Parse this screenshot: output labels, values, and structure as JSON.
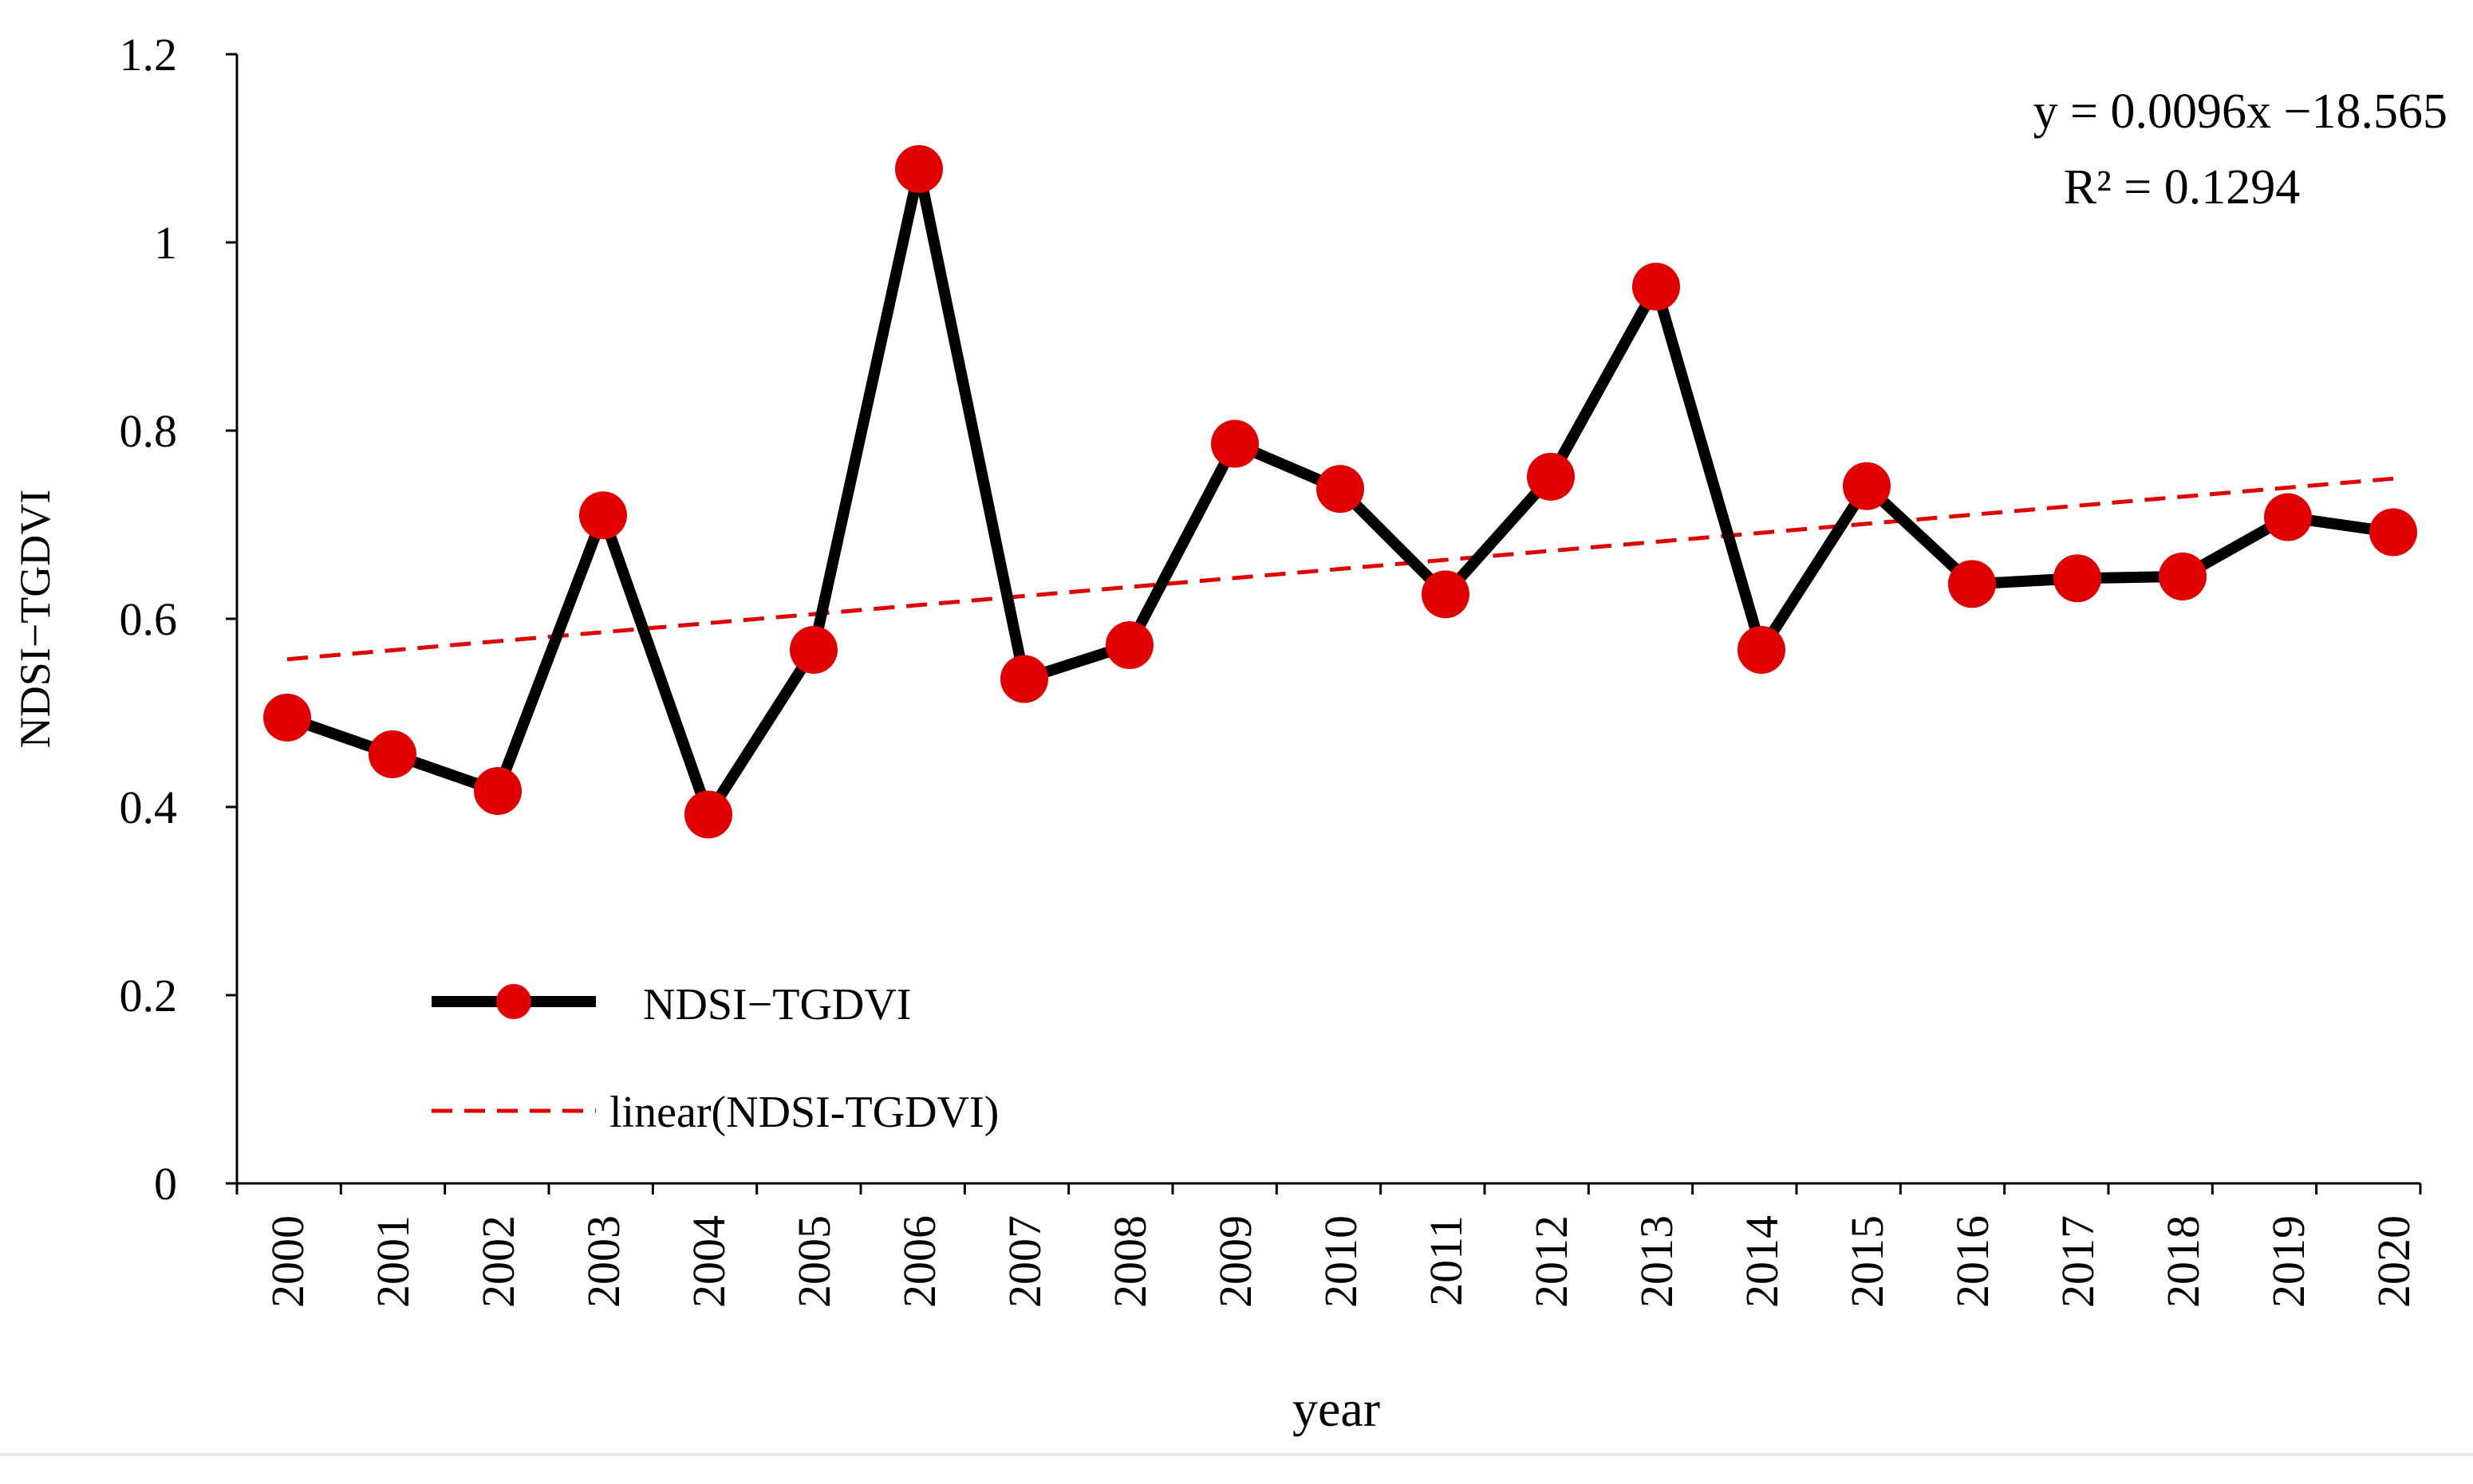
{
  "chart_data": {
    "type": "line",
    "title": "",
    "xlabel": "year",
    "ylabel": "NDSI−TGDVI",
    "ylim": [
      0,
      1.2
    ],
    "yticks": [
      "0",
      "0.2",
      "0.4",
      "0.6",
      "0.8",
      "1",
      "1.2"
    ],
    "categories": [
      "2000",
      "2001",
      "2002",
      "2003",
      "2004",
      "2005",
      "2006",
      "2007",
      "2008",
      "2009",
      "2010",
      "2011",
      "2012",
      "2013",
      "2014",
      "2015",
      "2016",
      "2017",
      "2018",
      "2019",
      "2020"
    ],
    "series": [
      {
        "name": "NDSI−TGDVI",
        "line_color": "#000000",
        "marker_color": "#e00000",
        "values": [
          0.495,
          0.456,
          0.417,
          0.71,
          0.392,
          0.567,
          1.078,
          0.536,
          0.572,
          0.786,
          0.738,
          0.626,
          0.751,
          0.953,
          0.567,
          0.741,
          0.637,
          0.643,
          0.645,
          0.708,
          0.692
        ]
      }
    ],
    "trendline": {
      "name": "linear(NDSI-TGDVI)",
      "color": "#e00000",
      "style": "dashed",
      "start": 0.557,
      "end": 0.749
    },
    "annotation": {
      "equation": "y = 0.0096x −18.565",
      "r2": "R² = 0.1294"
    },
    "legend_position": "bottom-left",
    "grid": false
  }
}
